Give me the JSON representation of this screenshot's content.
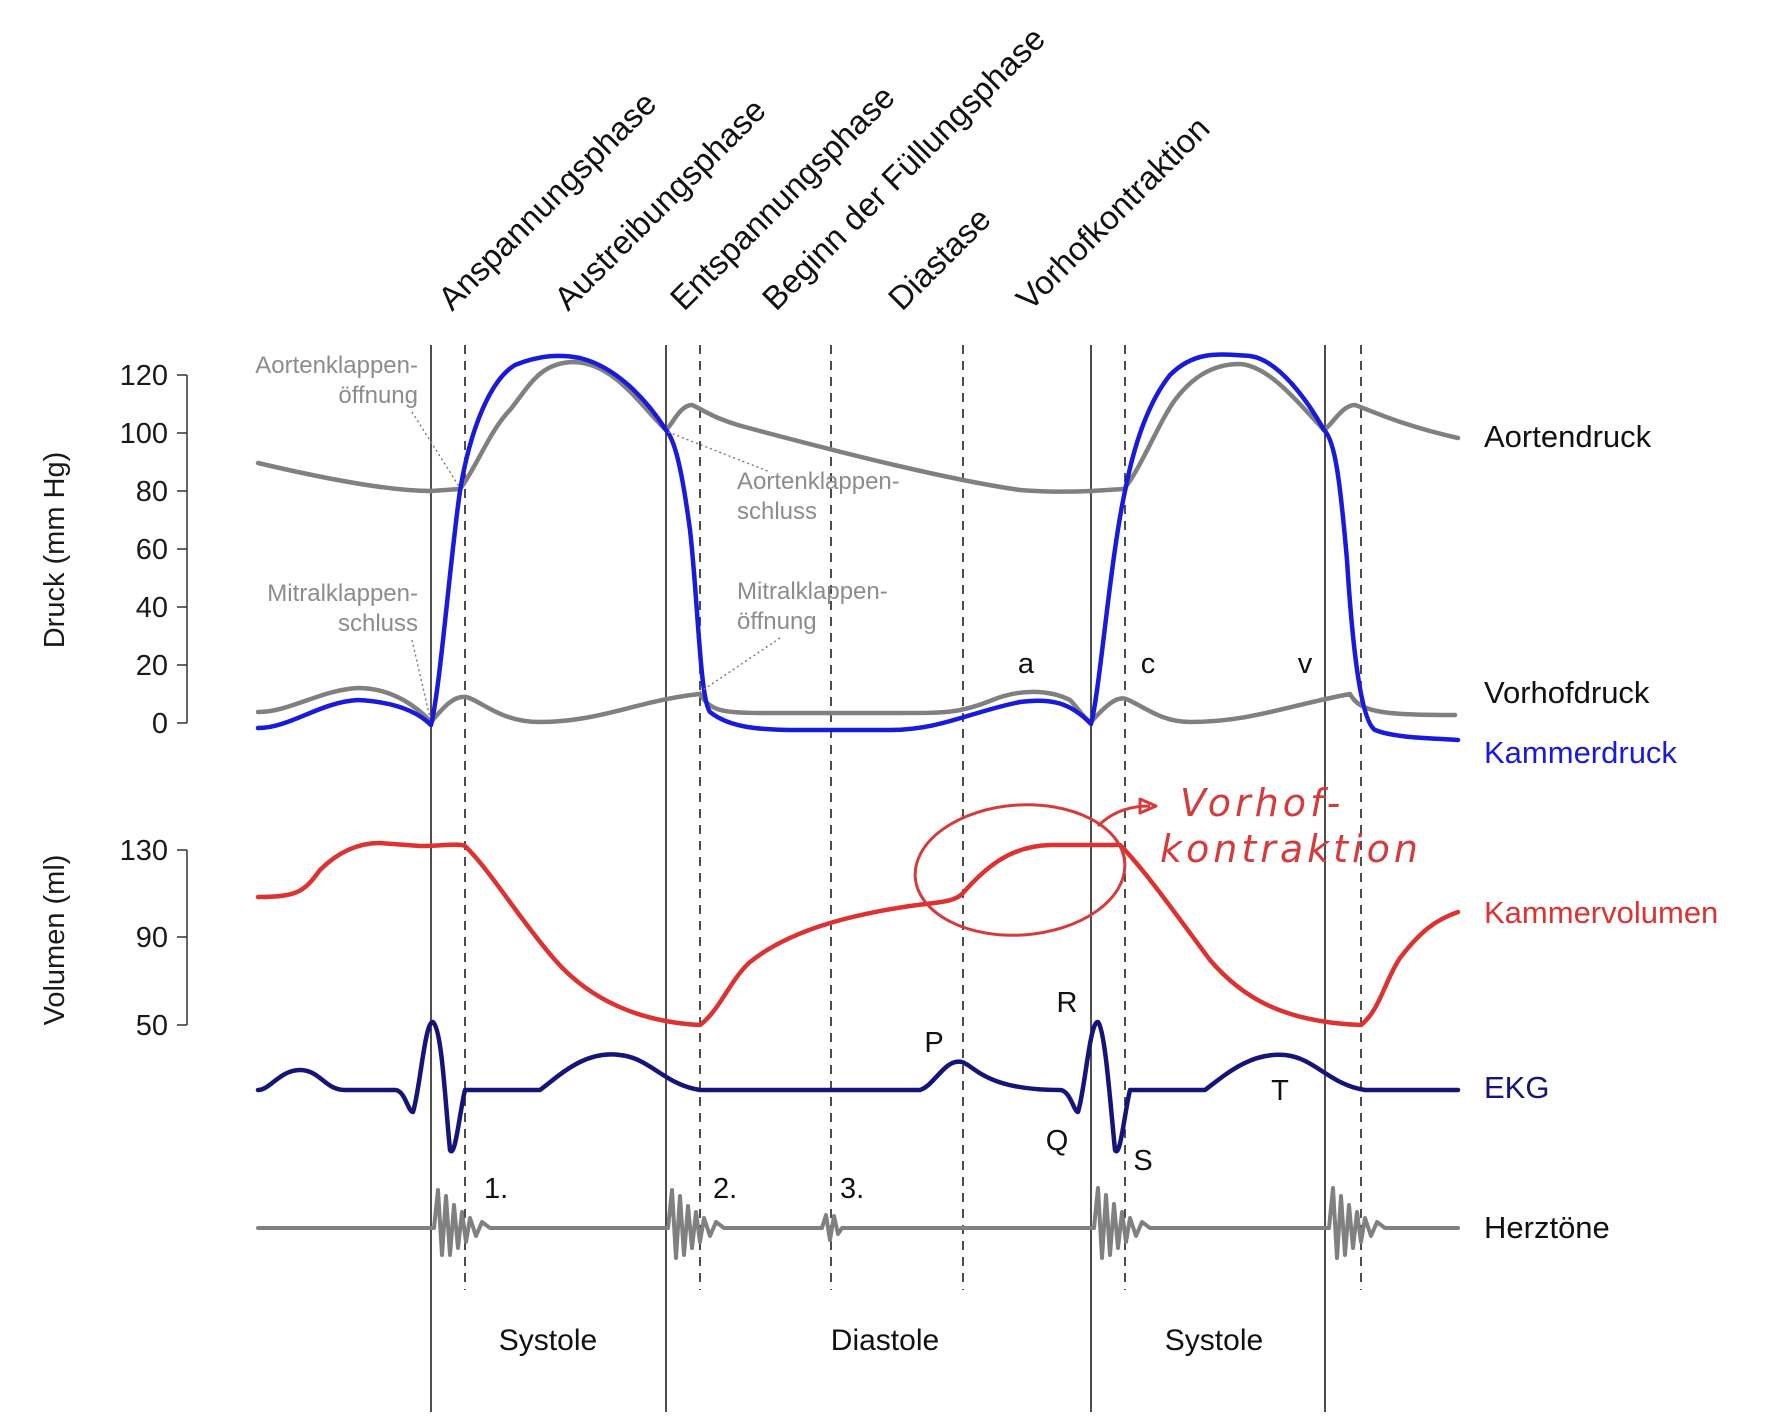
{
  "phases": [
    "Anspannungsphase",
    "Austreibungsphase",
    "Entspannungsphase",
    "Beginn der Füllungsphase",
    "Diastase",
    "Vorhofkontraktion"
  ],
  "pressure_axis": {
    "title": "Druck (mm Hg)",
    "ticks": [
      "120",
      "100",
      "80",
      "60",
      "40",
      "20",
      "0"
    ]
  },
  "volume_axis": {
    "title": "Volumen (ml)",
    "ticks": [
      "130",
      "90",
      "50"
    ]
  },
  "annotations": {
    "aortic_open": [
      "Aortenklappen-",
      "öffnung"
    ],
    "aortic_close": [
      "Aortenklappen-",
      "schluss"
    ],
    "mitral_close": [
      "Mitralklappen-",
      "schluss"
    ],
    "mitral_open": [
      "Mitralklappen-",
      "öffnung"
    ]
  },
  "wave_labels": {
    "a": "a",
    "c": "c",
    "v": "v",
    "P": "P",
    "R": "R",
    "Q": "Q",
    "S": "S",
    "T": "T"
  },
  "heart_sounds": [
    "1.",
    "2.",
    "3."
  ],
  "periods": [
    "Systole",
    "Diastole",
    "Systole"
  ],
  "legend": {
    "aortic_pressure": "Aortendruck",
    "atrial_pressure": "Vorhofdruck",
    "ventricular_pressure": "Kammerdruck",
    "ventricular_volume": "Kammervolumen",
    "ecg": "EKG",
    "heart_tones": "Herztöne"
  },
  "handwritten_note": [
    "Vorhof-",
    "kontraktion"
  ],
  "colors": {
    "aortic": "#808080",
    "atrial": "#808080",
    "ventricular_pressure": "#1a1adb",
    "volume": "#dc3232",
    "ecg": "#14147a",
    "heart_tones": "#808080",
    "note": "#d63b3b"
  }
}
